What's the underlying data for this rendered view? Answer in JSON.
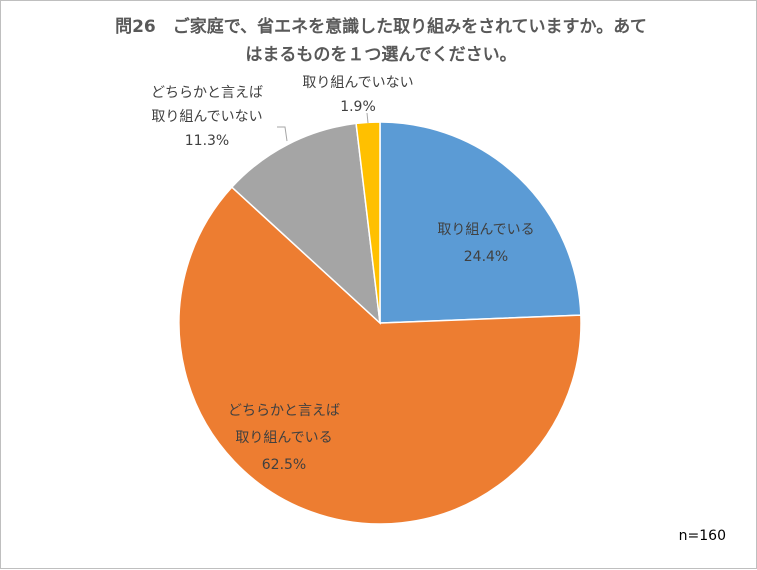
{
  "chart_data": {
    "type": "pie",
    "title_lines": [
      "問26　ご家庭で、省エネを意識した取り組みをされていますか。あて",
      "はまるものを１つ選んでください。"
    ],
    "slices": [
      {
        "label_lines": [
          "取り組んでいる"
        ],
        "value": 24.4,
        "value_label": "24.4%",
        "color": "#5b9bd5"
      },
      {
        "label_lines": [
          "どちらかと言えば",
          "取り組んでいる"
        ],
        "value": 62.5,
        "value_label": "62.5%",
        "color": "#ed7d31"
      },
      {
        "label_lines": [
          "どちらかと言えば",
          "取り組んでいない"
        ],
        "value": 11.3,
        "value_label": "11.3%",
        "color": "#a5a5a5"
      },
      {
        "label_lines": [
          "取り組んでいない"
        ],
        "value": 1.9,
        "value_label": "1.9%",
        "color": "#ffc000"
      }
    ],
    "note": "n=160",
    "legend": "none"
  }
}
